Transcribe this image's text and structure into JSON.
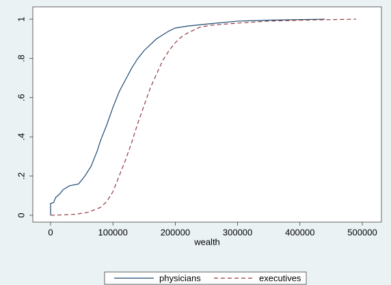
{
  "chart_data": {
    "type": "line",
    "x_label": "wealth",
    "xlim": [
      -28500,
      530700
    ],
    "ylim": [
      -0.035,
      1.063
    ],
    "xticks": [
      0,
      100000,
      200000,
      300000,
      400000,
      500000
    ],
    "yticks": [
      0,
      {
        "value": 0.2,
        "label": ".2"
      },
      {
        "value": 0.4,
        "label": ".4"
      },
      {
        "value": 0.6,
        "label": ".6"
      },
      {
        "value": 0.8,
        "label": ".8"
      },
      1
    ],
    "legend": "bottom",
    "series": [
      {
        "name": "physicians",
        "color": "#1a476f",
        "dash": "solid",
        "x": [
          0,
          0,
          5000,
          8000,
          15000,
          20000,
          30000,
          45000,
          55000,
          65000,
          75000,
          80000,
          90000,
          100000,
          110000,
          120000,
          130000,
          140000,
          150000,
          160000,
          170000,
          180000,
          190000,
          200000,
          220000,
          250000,
          300000,
          350000,
          440000
        ],
        "values": [
          0,
          0.06,
          0.065,
          0.09,
          0.11,
          0.13,
          0.15,
          0.16,
          0.2,
          0.25,
          0.33,
          0.38,
          0.46,
          0.55,
          0.63,
          0.69,
          0.75,
          0.8,
          0.84,
          0.87,
          0.9,
          0.92,
          0.94,
          0.955,
          0.965,
          0.975,
          0.99,
          0.995,
          1.0
        ]
      },
      {
        "name": "executives",
        "color": "#90353b",
        "dash": "dashed",
        "x": [
          0,
          20000,
          40000,
          60000,
          80000,
          90000,
          100000,
          110000,
          120000,
          130000,
          140000,
          150000,
          160000,
          170000,
          180000,
          190000,
          200000,
          210000,
          220000,
          240000,
          260000,
          300000,
          350000,
          400000,
          490000
        ],
        "values": [
          0,
          0.002,
          0.005,
          0.015,
          0.04,
          0.07,
          0.12,
          0.2,
          0.28,
          0.37,
          0.47,
          0.56,
          0.65,
          0.72,
          0.79,
          0.84,
          0.88,
          0.91,
          0.93,
          0.96,
          0.97,
          0.98,
          0.99,
          0.995,
          1.0
        ]
      }
    ]
  }
}
